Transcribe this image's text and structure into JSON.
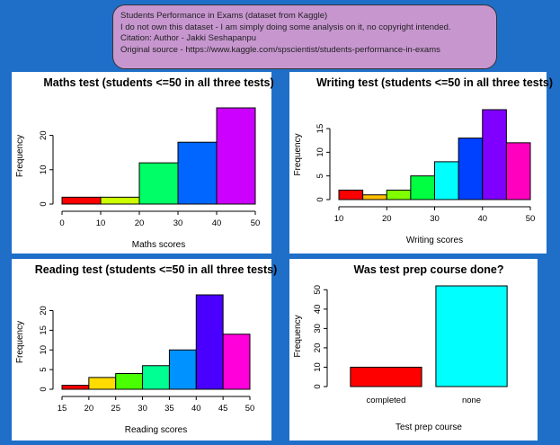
{
  "header": {
    "lines": [
      "Students Performance in Exams (dataset from Kaggle)",
      "I do not own this dataset - I am simply doing some analysis on it, no copyright intended.",
      "Citation: Author - Jakki Seshapanpu",
      "Original source - https://www.kaggle.com/spscientist/students-performance-in-exams"
    ]
  },
  "chart_data": [
    {
      "type": "histogram",
      "title": "Maths test (students <=50 in all three tests)",
      "x_label": "Maths scores",
      "y_label": "Frequency",
      "bins": [
        0,
        10,
        20,
        30,
        40,
        50
      ],
      "values": [
        2,
        2,
        12,
        18,
        28
      ],
      "colors": [
        "#FF0000",
        "#CCFF00",
        "#00FF66",
        "#0066FF",
        "#CC00FF"
      ],
      "xlim": [
        0,
        50
      ],
      "xticks": [
        0,
        10,
        20,
        30,
        40,
        50
      ],
      "ylim": [
        0,
        28
      ],
      "yticks": [
        0,
        10,
        20
      ]
    },
    {
      "type": "histogram",
      "title": "Writing test (students <=50 in all three tests)",
      "x_label": "Writing scores",
      "y_label": "Frequency",
      "bins": [
        10,
        15,
        20,
        25,
        30,
        35,
        40,
        45,
        50
      ],
      "values": [
        2,
        1,
        2,
        5,
        8,
        13,
        19,
        12
      ],
      "colors": [
        "#FF0000",
        "#FFBF00",
        "#80FF00",
        "#00FF40",
        "#00FFFF",
        "#0040FF",
        "#8000FF",
        "#FF00BF"
      ],
      "xlim": [
        10,
        50
      ],
      "xticks": [
        10,
        20,
        30,
        40,
        50
      ],
      "ylim": [
        0,
        19
      ],
      "yticks": [
        0,
        5,
        10,
        15
      ]
    },
    {
      "type": "histogram",
      "title": "Reading test (students <=50 in all three tests)",
      "x_label": "Reading scores",
      "y_label": "Frequency",
      "bins": [
        15,
        20,
        25,
        30,
        35,
        40,
        45,
        50
      ],
      "values": [
        1,
        3,
        4,
        6,
        10,
        24,
        14
      ],
      "colors": [
        "#FF0000",
        "#FFDB00",
        "#49FF00",
        "#00FF92",
        "#0092FF",
        "#4900FF",
        "#FF00DB"
      ],
      "xlim": [
        15,
        50
      ],
      "xticks": [
        15,
        20,
        25,
        30,
        35,
        40,
        45,
        50
      ],
      "ylim": [
        0,
        24
      ],
      "yticks": [
        0,
        5,
        10,
        15,
        20
      ]
    },
    {
      "type": "bar",
      "title": "Was test prep course done?",
      "x_label": "Test prep course",
      "y_label": "Frequency",
      "categories": [
        "completed",
        "none"
      ],
      "values": [
        10,
        52
      ],
      "colors": [
        "#FF0000",
        "#00FFFF"
      ],
      "ylim": [
        0,
        52
      ],
      "yticks": [
        0,
        10,
        20,
        30,
        40,
        50
      ]
    }
  ]
}
